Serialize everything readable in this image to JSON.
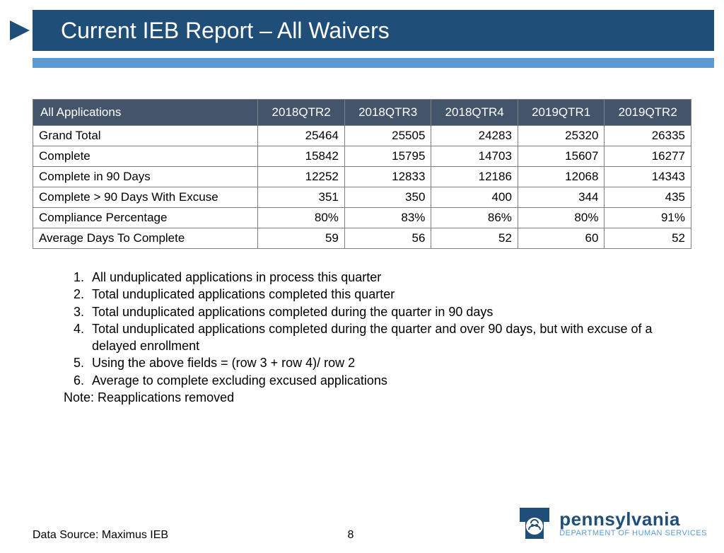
{
  "title": "Current IEB Report – All Waivers",
  "colors": {
    "title_bg": "#1f4e79",
    "title_text": "#ffffff",
    "subbar_bg": "#5b9bd5",
    "table_header_bg": "#44546a",
    "table_header_text": "#ffffff",
    "border": "#7f7f7f",
    "body_text": "#000000",
    "logo_primary": "#1f4e79",
    "logo_secondary": "#5b9bd5"
  },
  "table": {
    "header": [
      "All Applications",
      "2018QTR2",
      "2018QTR3",
      "2018QTR4",
      "2019QTR1",
      "2019QTR2"
    ],
    "rows": [
      [
        "Grand Total",
        "25464",
        "25505",
        "24283",
        "25320",
        "26335"
      ],
      [
        "Complete",
        "15842",
        "15795",
        "14703",
        "15607",
        "16277"
      ],
      [
        "Complete in 90 Days",
        "12252",
        "12833",
        "12186",
        "12068",
        "14343"
      ],
      [
        "Complete > 90 Days With Excuse",
        "351",
        "350",
        "400",
        "344",
        "435"
      ],
      [
        "Compliance Percentage",
        "80%",
        "83%",
        "86%",
        "80%",
        "91%"
      ],
      [
        "Average Days To Complete",
        "59",
        "56",
        "52",
        "60",
        "52"
      ]
    ]
  },
  "notes": {
    "items": [
      "All unduplicated applications in process this quarter",
      "Total unduplicated applications completed this quarter",
      "Total unduplicated applications completed during the quarter in 90 days",
      "Total unduplicated applications completed during the quarter and over 90 days, but with excuse of a delayed enrollment",
      "Using the above fields = (row 3 + row 4)/ row 2",
      "Average to complete excluding excused applications"
    ],
    "extra": "Note: Reapplications removed"
  },
  "footer": {
    "data_source": "Data Source: Maximus IEB",
    "page_number": "8",
    "logo_main": "pennsylvania",
    "logo_sub": "DEPARTMENT OF HUMAN SERVICES"
  }
}
